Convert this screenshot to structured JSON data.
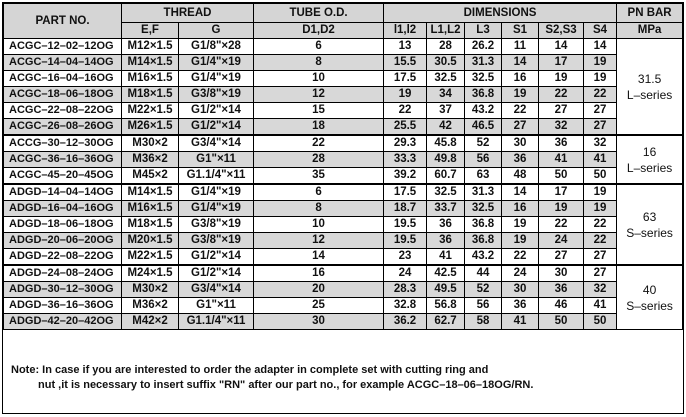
{
  "headers": {
    "part_no": "PART NO.",
    "thread": "THREAD",
    "tube_od": "TUBE O.D.",
    "dimensions": "DIMENSIONS",
    "pn_bar": "PN BAR",
    "mpa": "MPa",
    "ef": "E,F",
    "g": "G",
    "d1d2": "D1,D2",
    "l1l2": "l1,l2",
    "L1L2": "L1,L2",
    "L3": "L3",
    "S1": "S1",
    "S2S3": "S2,S3",
    "S4": "S4"
  },
  "groups": [
    {
      "pn": "31.5",
      "series": "L–series",
      "rows": [
        {
          "part": "ACGC–12–02–12OG",
          "ef": "M12×1.5",
          "g": "G1/8\"×28",
          "d": "6",
          "l12": "13",
          "L12": "28",
          "L3": "26.2",
          "S1": "11",
          "S23": "14",
          "S4": "14"
        },
        {
          "part": "ACGC–14–04–14OG",
          "ef": "M14×1.5",
          "g": "G1/4\"×19",
          "d": "8",
          "l12": "15.5",
          "L12": "30.5",
          "L3": "31.3",
          "S1": "14",
          "S23": "17",
          "S4": "19"
        },
        {
          "part": "ACGC–16–04–16OG",
          "ef": "M16×1.5",
          "g": "G1/4\"×19",
          "d": "10",
          "l12": "17.5",
          "L12": "32.5",
          "L3": "32.5",
          "S1": "16",
          "S23": "19",
          "S4": "19"
        },
        {
          "part": "ACGC–18–06–18OG",
          "ef": "M18×1.5",
          "g": "G3/8\"×19",
          "d": "12",
          "l12": "19",
          "L12": "34",
          "L3": "36.8",
          "S1": "19",
          "S23": "22",
          "S4": "22"
        },
        {
          "part": "ACGC–22–08–22OG",
          "ef": "M22×1.5",
          "g": "G1/2\"×14",
          "d": "15",
          "l12": "22",
          "L12": "37",
          "L3": "43.2",
          "S1": "22",
          "S23": "27",
          "S4": "27"
        },
        {
          "part": "ACGC–26–08–26OG",
          "ef": "M26×1.5",
          "g": "G1/2\"×14",
          "d": "18",
          "l12": "25.5",
          "L12": "42",
          "L3": "46.5",
          "S1": "27",
          "S23": "32",
          "S4": "27"
        }
      ]
    },
    {
      "pn": "16",
      "series": "L–series",
      "rows": [
        {
          "part": "ACCG–30–12–30OG",
          "ef": "M30×2",
          "g": "G3/4\"×14",
          "d": "22",
          "l12": "29.3",
          "L12": "45.8",
          "L3": "52",
          "S1": "30",
          "S23": "36",
          "S4": "32"
        },
        {
          "part": "ACGC–36–16–36OG",
          "ef": "M36×2",
          "g": "G1\"×11",
          "d": "28",
          "l12": "33.3",
          "L12": "49.8",
          "L3": "56",
          "S1": "36",
          "S23": "41",
          "S4": "41"
        },
        {
          "part": "ACGC–45–20–45OG",
          "ef": "M45×2",
          "g": "G1.1/4\"×11",
          "d": "35",
          "l12": "39.2",
          "L12": "60.7",
          "L3": "63",
          "S1": "48",
          "S23": "50",
          "S4": "50"
        }
      ]
    },
    {
      "pn": "63",
      "series": "S–series",
      "rows": [
        {
          "part": "ADGD–14–04–14OG",
          "ef": "M14×1.5",
          "g": "G1/4\"×19",
          "d": "6",
          "l12": "17.5",
          "L12": "32.5",
          "L3": "31.3",
          "S1": "14",
          "S23": "17",
          "S4": "19"
        },
        {
          "part": "ADGD–16–04–16OG",
          "ef": "M16×1.5",
          "g": "G1/4\"×19",
          "d": "8",
          "l12": "18.7",
          "L12": "33.7",
          "L3": "32.5",
          "S1": "16",
          "S23": "19",
          "S4": "19"
        },
        {
          "part": "ADGD–18–06–18OG",
          "ef": "M18×1.5",
          "g": "G3/8\"×19",
          "d": "10",
          "l12": "19.5",
          "L12": "36",
          "L3": "36.8",
          "S1": "19",
          "S23": "22",
          "S4": "22"
        },
        {
          "part": "ADGD–20–06–20OG",
          "ef": "M20×1.5",
          "g": "G3/8\"×19",
          "d": "12",
          "l12": "19.5",
          "L12": "36",
          "L3": "36.8",
          "S1": "19",
          "S23": "24",
          "S4": "22"
        },
        {
          "part": "ADGD–22–08–22OG",
          "ef": "M22×1.5",
          "g": "G1/2\"×14",
          "d": "14",
          "l12": "23",
          "L12": "41",
          "L3": "43.2",
          "S1": "22",
          "S23": "27",
          "S4": "27"
        }
      ]
    },
    {
      "pn": "40",
      "series": "S–series",
      "rows": [
        {
          "part": "ADGD–24–08–24OG",
          "ef": "M24×1.5",
          "g": "G1/2\"×14",
          "d": "16",
          "l12": "24",
          "L12": "42.5",
          "L3": "44",
          "S1": "24",
          "S23": "30",
          "S4": "27"
        },
        {
          "part": "ADGD–30–12–30OG",
          "ef": "M30×2",
          "g": "G3/4\"×14",
          "d": "20",
          "l12": "28.3",
          "L12": "49.5",
          "L3": "52",
          "S1": "30",
          "S23": "36",
          "S4": "32"
        },
        {
          "part": "ADGD–36–16–36OG",
          "ef": "M36×2",
          "g": "G1\"×11",
          "d": "25",
          "l12": "32.8",
          "L12": "56.8",
          "L3": "56",
          "S1": "36",
          "S23": "46",
          "S4": "41"
        },
        {
          "part": "ADGD–42–20–42OG",
          "ef": "M42×2",
          "g": "G1.1/4\"×11",
          "d": "30",
          "l12": "36.2",
          "L12": "62.7",
          "L3": "58",
          "S1": "41",
          "S23": "50",
          "S4": "50"
        }
      ]
    }
  ],
  "note": {
    "line1": "Note: In case if you are interested to order the adapter in complete set with cutting ring and",
    "line2": "nut ,it is necessary to insert suffix \"RN\" after our part no., for example ACGC–18–06–18OG/RN."
  }
}
